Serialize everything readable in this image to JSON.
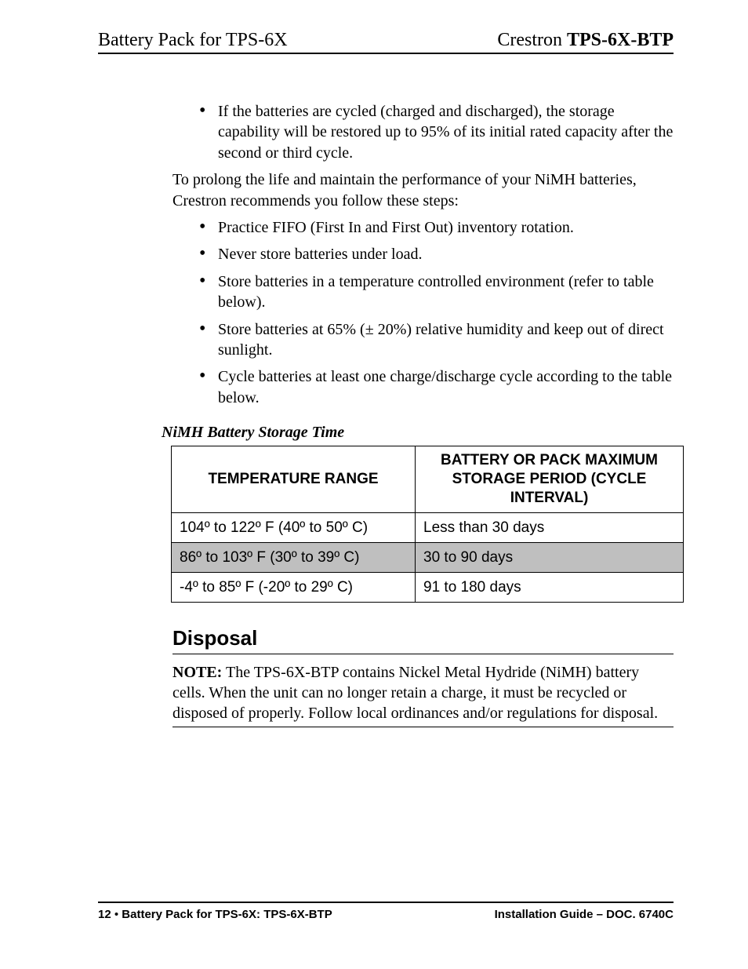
{
  "header": {
    "left": "Battery Pack for TPS-6X",
    "right_brand": "Crestron ",
    "right_model": "TPS-6X-BTP"
  },
  "intro_bullets": [
    "If the batteries are cycled (charged and discharged), the storage capability will be restored up to 95% of its initial rated capacity after the second or third cycle."
  ],
  "prolong_text": "To prolong the life and maintain the performance of your NiMH batteries, Crestron recommends you follow these steps:",
  "step_bullets": [
    "Practice FIFO (First In and First Out) inventory rotation.",
    "Never store batteries under load.",
    "Store batteries in a temperature controlled environment (refer to table below).",
    "Store batteries at 65% (± 20%) relative humidity and keep out of direct sunlight.",
    "Cycle batteries at least one charge/discharge cycle according to the table below."
  ],
  "table": {
    "caption": "NiMH Battery Storage Time",
    "columns": [
      "TEMPERATURE RANGE",
      "BATTERY OR PACK MAXIMUM STORAGE PERIOD (CYCLE INTERVAL)"
    ],
    "rows": [
      {
        "temp": "104º to 122º F (40º to 50º C)",
        "period": "Less than 30 days",
        "shaded": false
      },
      {
        "temp": "86º to 103º F (30º to 39º C)",
        "period": "30 to 90 days",
        "shaded": true
      },
      {
        "temp": "-4º to 85º F (-20º to 29º C)",
        "period": "91 to 180 days",
        "shaded": false
      }
    ],
    "header_bg": "#ffffff",
    "shaded_bg": "#bfbfbf",
    "border_color": "#000000",
    "font_family": "Arial",
    "font_size_pt": 14
  },
  "disposal": {
    "heading": "Disposal",
    "note_label": "NOTE:",
    "note_text": "  The TPS-6X-BTP contains Nickel Metal Hydride (NiMH) battery cells. When the unit can no longer retain a charge, it must be recycled or disposed of properly. Follow local ordinances and/or regulations for disposal."
  },
  "footer": {
    "page_number": "12",
    "left_sep": "•",
    "left_text": "Battery Pack for TPS-6X: TPS-6X-BTP",
    "right_text": "Installation Guide – DOC. 6740C"
  }
}
